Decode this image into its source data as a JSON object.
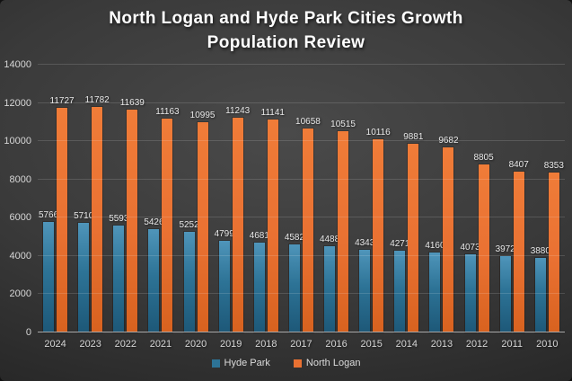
{
  "title": {
    "line1": "North Logan and Hyde Park Cities Growth",
    "line2": "Population Review",
    "full": "North Logan and Hyde Park Cities Growth Population Review"
  },
  "colors": {
    "background_center": "#4a4a4a",
    "background_edge": "#1d1d1d",
    "hyde_park": "#2d7396",
    "north_logan": "#e97132",
    "gridline": "#5a5a5a",
    "axis_line": "#a8a8a8",
    "text": "#d6d6d6",
    "title_text": "#ffffff"
  },
  "chart_data": {
    "type": "bar",
    "title": "North Logan and Hyde Park Cities Growth Population Review",
    "categories": [
      "2024",
      "2023",
      "2022",
      "2021",
      "2020",
      "2019",
      "2018",
      "2017",
      "2016",
      "2015",
      "2014",
      "2013",
      "2012",
      "2011",
      "2010"
    ],
    "series": [
      {
        "name": "Hyde Park",
        "color": "#2d7396",
        "values": [
          5766,
          5710,
          5593,
          5426,
          5252,
          4799,
          4681,
          4582,
          4488,
          4343,
          4271,
          4160,
          4073,
          3972,
          3880
        ]
      },
      {
        "name": "North Logan",
        "color": "#e97132",
        "values": [
          11727,
          11782,
          11639,
          11163,
          10995,
          11243,
          11141,
          10658,
          10515,
          10116,
          9881,
          9682,
          8805,
          8407,
          8353
        ]
      }
    ],
    "xlabel": "",
    "ylabel": "",
    "ylim": [
      0,
      14000
    ],
    "yticks": [
      0,
      2000,
      4000,
      6000,
      8000,
      10000,
      12000,
      14000
    ],
    "grid": true,
    "data_labels": true,
    "legend_position": "bottom"
  }
}
